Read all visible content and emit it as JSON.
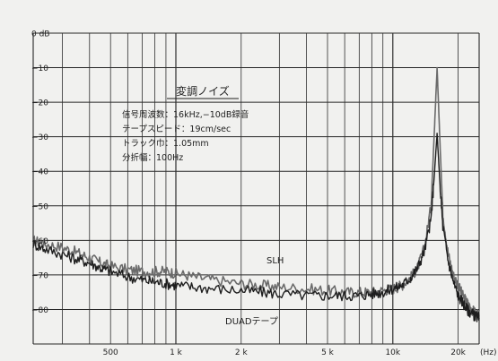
{
  "chart_data": {
    "type": "line",
    "title": "変調ノイズ",
    "annotations": [
      "信号周波数：16kHz,−10dB録音",
      "テープスピード：19cm/sec",
      "トラック巾：1.05mm",
      "分折幅：100Hz"
    ],
    "x_unit": "(Hz)",
    "x_scale": "log",
    "xlim": [
      220,
      25000
    ],
    "x_ticks": [
      {
        "value": 500,
        "label": "500"
      },
      {
        "value": 1000,
        "label": "1 k"
      },
      {
        "value": 2000,
        "label": "2 k"
      },
      {
        "value": 5000,
        "label": "5 k"
      },
      {
        "value": 10000,
        "label": "10k"
      },
      {
        "value": 20000,
        "label": "20k"
      }
    ],
    "ylim": [
      -90,
      0
    ],
    "y_ticks": [
      {
        "value": 0,
        "label": "0 dB"
      },
      {
        "value": -10,
        "label": "−10"
      },
      {
        "value": -20,
        "label": "−20"
      },
      {
        "value": -30,
        "label": "−30"
      },
      {
        "value": -40,
        "label": "−40"
      },
      {
        "value": -50,
        "label": "−50"
      },
      {
        "value": -60,
        "label": "−60"
      },
      {
        "value": -70,
        "label": "−70"
      },
      {
        "value": -80,
        "label": "−80"
      }
    ],
    "grid": true,
    "series": [
      {
        "name": "SLH",
        "color": "#6a6a6a",
        "x": [
          220,
          250,
          300,
          350,
          400,
          450,
          500,
          600,
          700,
          800,
          900,
          1000,
          1200,
          1500,
          2000,
          2500,
          3000,
          4000,
          5000,
          6000,
          7000,
          8000,
          9000,
          10000,
          11000,
          12000,
          13000,
          14000,
          15000,
          15500,
          16000,
          16500,
          17000,
          18000,
          19000,
          20000,
          21000,
          22000,
          23000,
          24000,
          25000
        ],
        "y": [
          -60,
          -61,
          -62,
          -63.5,
          -65,
          -66.5,
          -67.5,
          -68.5,
          -69,
          -69,
          -69,
          -69.5,
          -70.5,
          -71.5,
          -72.5,
          -73,
          -73.5,
          -74,
          -74.5,
          -75,
          -75,
          -75,
          -74.5,
          -74,
          -73,
          -71,
          -68,
          -62,
          -50,
          -30,
          -10,
          -32,
          -52,
          -64,
          -70,
          -73,
          -76,
          -78,
          -80,
          -81,
          -82
        ]
      },
      {
        "name": "DUADテープ",
        "color": "#1e1e1e",
        "x": [
          220,
          250,
          300,
          350,
          400,
          450,
          500,
          600,
          700,
          800,
          900,
          1000,
          1200,
          1500,
          2000,
          2500,
          3000,
          4000,
          5000,
          6000,
          7000,
          8000,
          9000,
          10000,
          11000,
          12000,
          13000,
          14000,
          15000,
          15500,
          16000,
          16500,
          17000,
          18000,
          19000,
          20000,
          21000,
          22000,
          23000,
          24000,
          25000
        ],
        "y": [
          -61,
          -62.5,
          -64,
          -65.5,
          -66.5,
          -68,
          -69,
          -70.5,
          -71.5,
          -72,
          -72.5,
          -73,
          -73.5,
          -74,
          -74.5,
          -75,
          -75.5,
          -76,
          -76,
          -76,
          -76,
          -75.5,
          -75,
          -74,
          -73,
          -71,
          -68,
          -63,
          -54,
          -42,
          -29,
          -44,
          -56,
          -66,
          -72,
          -76,
          -78,
          -80,
          -81,
          -82,
          -82.5
        ]
      }
    ],
    "series_labels": [
      "SLH",
      "DUADテープ"
    ]
  }
}
